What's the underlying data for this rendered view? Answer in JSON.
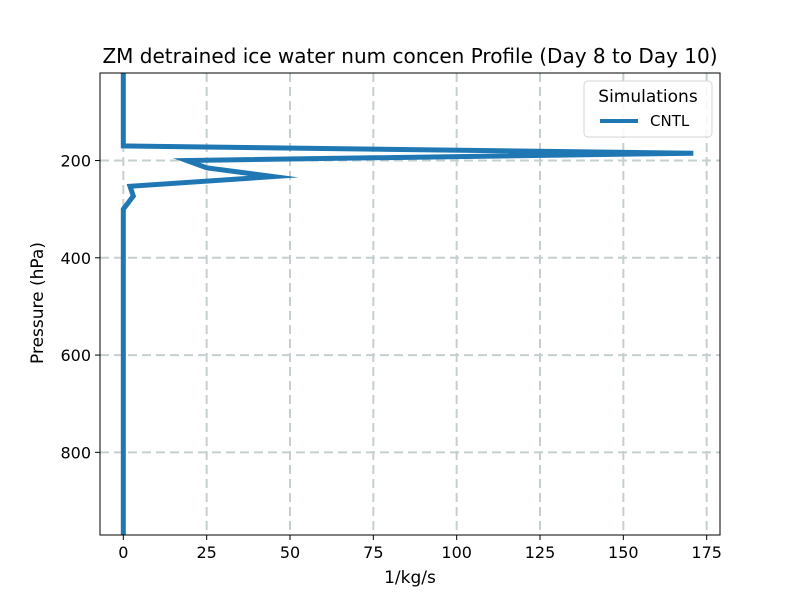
{
  "chart_data": {
    "type": "line",
    "title": "ZM detrained ice water num concen Profile (Day 8 to Day 10)",
    "xlabel": "1/kg/s",
    "ylabel": "Pressure (hPa)",
    "xlim": [
      -7,
      179
    ],
    "ylim": [
      970,
      20
    ],
    "y_inverted": true,
    "grid": true,
    "xticks": [
      0,
      25,
      50,
      75,
      100,
      125,
      150,
      175
    ],
    "yticks": [
      200,
      400,
      600,
      800
    ],
    "legend": {
      "title": "Simulations",
      "placement": "top-right"
    },
    "series": [
      {
        "name": "CNTL",
        "color": "#1f77b4",
        "points": [
          {
            "x": 0,
            "y": 20
          },
          {
            "x": 0,
            "y": 100
          },
          {
            "x": 0,
            "y": 170
          },
          {
            "x": 171,
            "y": 185
          },
          {
            "x": 19,
            "y": 200
          },
          {
            "x": 25,
            "y": 215
          },
          {
            "x": 45,
            "y": 233
          },
          {
            "x": 2,
            "y": 253
          },
          {
            "x": 3,
            "y": 273
          },
          {
            "x": 0,
            "y": 300
          },
          {
            "x": 0,
            "y": 400
          },
          {
            "x": 0,
            "y": 600
          },
          {
            "x": 0,
            "y": 800
          },
          {
            "x": 0,
            "y": 970
          }
        ]
      }
    ]
  }
}
